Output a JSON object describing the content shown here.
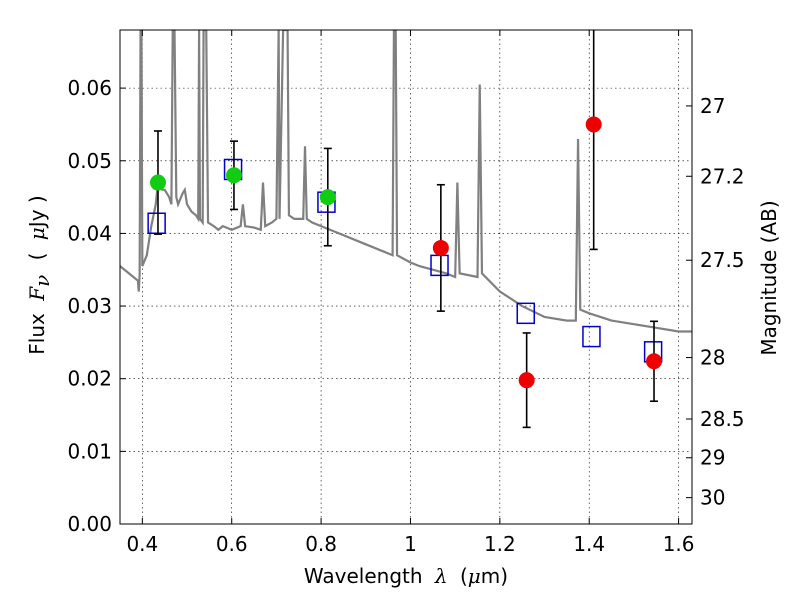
{
  "chart_data": {
    "type": "scatter",
    "xlabel_prefix": "Wavelength",
    "xlabel_symbol": "λ",
    "xlabel_unit_open": "(",
    "xlabel_unit_mu": "μ",
    "xlabel_unit_rest": "m)",
    "ylabel_prefix": "Flux",
    "ylabel_symbol": "F",
    "ylabel_subscript": "ν",
    "ylabel_unit_open": "(",
    "ylabel_unit_mu": "μ",
    "ylabel_unit_rest": "Jy )",
    "y2label": "Magnitude (AB)",
    "xlim": [
      0.35,
      1.63
    ],
    "ylim": [
      0.0,
      0.068
    ],
    "grid": true,
    "x_ticks": [
      {
        "value": 0.4,
        "label": "0.4"
      },
      {
        "value": 0.6,
        "label": "0.6"
      },
      {
        "value": 0.8,
        "label": "0.8"
      },
      {
        "value": 1.0,
        "label": "1"
      },
      {
        "value": 1.2,
        "label": "1.2"
      },
      {
        "value": 1.4,
        "label": "1.4"
      },
      {
        "value": 1.6,
        "label": "1.6"
      }
    ],
    "y_ticks": [
      {
        "value": 0.0,
        "label": "0.00"
      },
      {
        "value": 0.01,
        "label": "0.01"
      },
      {
        "value": 0.02,
        "label": "0.02"
      },
      {
        "value": 0.03,
        "label": "0.03"
      },
      {
        "value": 0.04,
        "label": "0.04"
      },
      {
        "value": 0.05,
        "label": "0.05"
      },
      {
        "value": 0.06,
        "label": "0.06"
      }
    ],
    "y2_ticks": [
      {
        "value": 27.0,
        "label": "27"
      },
      {
        "value": 27.2,
        "label": "27.2"
      },
      {
        "value": 27.5,
        "label": "27.5"
      },
      {
        "value": 28.0,
        "label": "28"
      },
      {
        "value": 28.5,
        "label": "28.5"
      },
      {
        "value": 29.0,
        "label": "29"
      },
      {
        "value": 30.0,
        "label": "30"
      }
    ],
    "series": [
      {
        "marker": "line",
        "color": "#808080",
        "points": [
          [
            0.35,
            0.0355
          ],
          [
            0.36,
            0.035
          ],
          [
            0.37,
            0.0345
          ],
          [
            0.38,
            0.034
          ],
          [
            0.39,
            0.0335
          ],
          [
            0.392,
            0.032
          ],
          [
            0.394,
            0.0345
          ],
          [
            0.396,
            0.068
          ],
          [
            0.398,
            0.068
          ],
          [
            0.4,
            0.0355
          ],
          [
            0.41,
            0.037
          ],
          [
            0.42,
            0.041
          ],
          [
            0.43,
            0.044
          ],
          [
            0.435,
            0.047
          ],
          [
            0.44,
            0.048
          ],
          [
            0.445,
            0.046
          ],
          [
            0.45,
            0.046
          ],
          [
            0.455,
            0.0455
          ],
          [
            0.46,
            0.045
          ],
          [
            0.465,
            0.044
          ],
          [
            0.468,
            0.068
          ],
          [
            0.472,
            0.068
          ],
          [
            0.476,
            0.045
          ],
          [
            0.48,
            0.044
          ],
          [
            0.49,
            0.0455
          ],
          [
            0.495,
            0.046
          ],
          [
            0.5,
            0.044
          ],
          [
            0.51,
            0.043
          ],
          [
            0.52,
            0.0425
          ],
          [
            0.525,
            0.042
          ],
          [
            0.527,
            0.068
          ],
          [
            0.529,
            0.042
          ],
          [
            0.535,
            0.0415
          ],
          [
            0.537,
            0.068
          ],
          [
            0.543,
            0.068
          ],
          [
            0.547,
            0.0415
          ],
          [
            0.56,
            0.041
          ],
          [
            0.57,
            0.0405
          ],
          [
            0.58,
            0.041
          ],
          [
            0.6,
            0.0405
          ],
          [
            0.62,
            0.041
          ],
          [
            0.625,
            0.044
          ],
          [
            0.63,
            0.041
          ],
          [
            0.65,
            0.0408
          ],
          [
            0.665,
            0.0405
          ],
          [
            0.67,
            0.047
          ],
          [
            0.675,
            0.041
          ],
          [
            0.69,
            0.0415
          ],
          [
            0.7,
            0.042
          ],
          [
            0.705,
            0.068
          ],
          [
            0.707,
            0.042
          ],
          [
            0.715,
            0.068
          ],
          [
            0.725,
            0.068
          ],
          [
            0.728,
            0.0425
          ],
          [
            0.74,
            0.042
          ],
          [
            0.76,
            0.042
          ],
          [
            0.764,
            0.052
          ],
          [
            0.768,
            0.042
          ],
          [
            0.78,
            0.0415
          ],
          [
            0.8,
            0.041
          ],
          [
            0.82,
            0.0405
          ],
          [
            0.84,
            0.04
          ],
          [
            0.86,
            0.0395
          ],
          [
            0.88,
            0.039
          ],
          [
            0.9,
            0.0385
          ],
          [
            0.92,
            0.038
          ],
          [
            0.94,
            0.0375
          ],
          [
            0.96,
            0.037
          ],
          [
            0.963,
            0.068
          ],
          [
            0.967,
            0.068
          ],
          [
            0.97,
            0.037
          ],
          [
            1.0,
            0.036
          ],
          [
            1.02,
            0.0355
          ],
          [
            1.05,
            0.035
          ],
          [
            1.08,
            0.0345
          ],
          [
            1.1,
            0.034
          ],
          [
            1.105,
            0.047
          ],
          [
            1.11,
            0.0345
          ],
          [
            1.15,
            0.034
          ],
          [
            1.155,
            0.0605
          ],
          [
            1.16,
            0.0345
          ],
          [
            1.2,
            0.032
          ],
          [
            1.25,
            0.03
          ],
          [
            1.3,
            0.0285
          ],
          [
            1.35,
            0.028
          ],
          [
            1.37,
            0.028
          ],
          [
            1.375,
            0.053
          ],
          [
            1.38,
            0.0295
          ],
          [
            1.4,
            0.029
          ],
          [
            1.45,
            0.028
          ],
          [
            1.5,
            0.0275
          ],
          [
            1.55,
            0.027
          ],
          [
            1.6,
            0.0265
          ],
          [
            1.63,
            0.0265
          ]
        ]
      },
      {
        "marker": "open-square",
        "color": "#0000cc",
        "points": [
          [
            0.432,
            0.0414
          ],
          [
            0.603,
            0.0488
          ],
          [
            0.812,
            0.0443
          ],
          [
            1.065,
            0.0356
          ],
          [
            1.258,
            0.029
          ],
          [
            1.405,
            0.0258
          ],
          [
            1.543,
            0.0237
          ]
        ]
      },
      {
        "marker": "filled-circle",
        "color": "#11cc11",
        "points": [
          {
            "x": 0.435,
            "y": 0.047,
            "err_low": 0.0071,
            "err_high": 0.0071
          },
          {
            "x": 0.605,
            "y": 0.048,
            "err_low": 0.0047,
            "err_high": 0.0047
          },
          {
            "x": 0.815,
            "y": 0.045,
            "err_low": 0.0067,
            "err_high": 0.0067
          }
        ]
      },
      {
        "marker": "filled-circle",
        "color": "#ee0000",
        "points": [
          {
            "x": 1.068,
            "y": 0.038,
            "err_low": 0.0087,
            "err_high": 0.0087
          },
          {
            "x": 1.26,
            "y": 0.0198,
            "err_low": 0.0065,
            "err_high": 0.0065
          },
          {
            "x": 1.41,
            "y": 0.055,
            "err_low": 0.0172,
            "err_high": 0.0172
          },
          {
            "x": 1.545,
            "y": 0.0224,
            "err_low": 0.0055,
            "err_high": 0.0055
          }
        ]
      }
    ]
  }
}
